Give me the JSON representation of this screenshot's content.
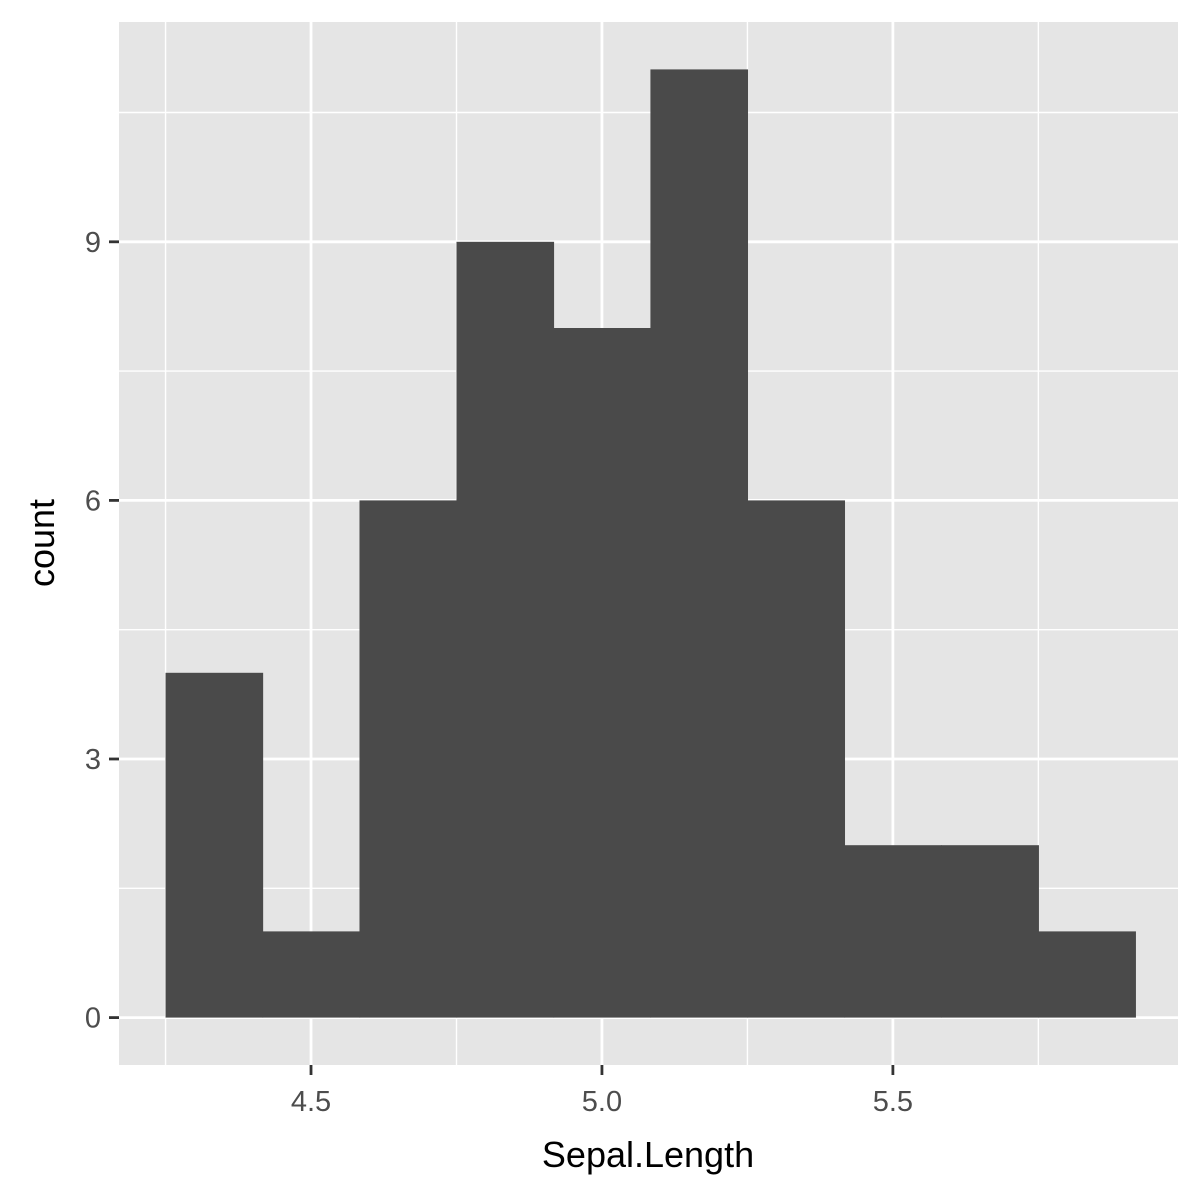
{
  "chart_data": {
    "type": "bar",
    "subtype": "histogram",
    "title": "",
    "xlabel": "Sepal.Length",
    "ylabel": "count",
    "bin_width": 0.1667,
    "bins": [
      {
        "x_start": 4.25,
        "x_end": 4.4167,
        "count": 4
      },
      {
        "x_start": 4.4167,
        "x_end": 4.5833,
        "count": 1
      },
      {
        "x_start": 4.5833,
        "x_end": 4.75,
        "count": 6
      },
      {
        "x_start": 4.75,
        "x_end": 4.9167,
        "count": 9
      },
      {
        "x_start": 4.9167,
        "x_end": 5.0833,
        "count": 8
      },
      {
        "x_start": 5.0833,
        "x_end": 5.25,
        "count": 11
      },
      {
        "x_start": 5.25,
        "x_end": 5.4167,
        "count": 6
      },
      {
        "x_start": 5.4167,
        "x_end": 5.5833,
        "count": 2
      },
      {
        "x_start": 5.5833,
        "x_end": 5.75,
        "count": 2
      },
      {
        "x_start": 5.75,
        "x_end": 5.9167,
        "count": 1
      }
    ],
    "xlim": [
      4.17,
      5.99
    ],
    "ylim": [
      -0.55,
      11.55
    ],
    "x_ticks": [
      {
        "value": 4.5,
        "label": "4.5"
      },
      {
        "value": 5.0,
        "label": "5.0"
      },
      {
        "value": 5.5,
        "label": "5.5"
      }
    ],
    "x_minor_ticks": [
      4.25,
      4.75,
      5.25,
      5.75
    ],
    "y_ticks": [
      {
        "value": 0,
        "label": "0"
      },
      {
        "value": 3,
        "label": "3"
      },
      {
        "value": 6,
        "label": "6"
      },
      {
        "value": 9,
        "label": "9"
      }
    ],
    "y_minor_ticks": [
      1.5,
      4.5,
      7.5,
      10.5
    ],
    "grid": true,
    "legend": "none",
    "colors": {
      "bar_fill": "#4a4a4a",
      "panel_background": "#e5e5e5",
      "grid_line": "#ffffff",
      "tick_mark": "#333333"
    }
  }
}
